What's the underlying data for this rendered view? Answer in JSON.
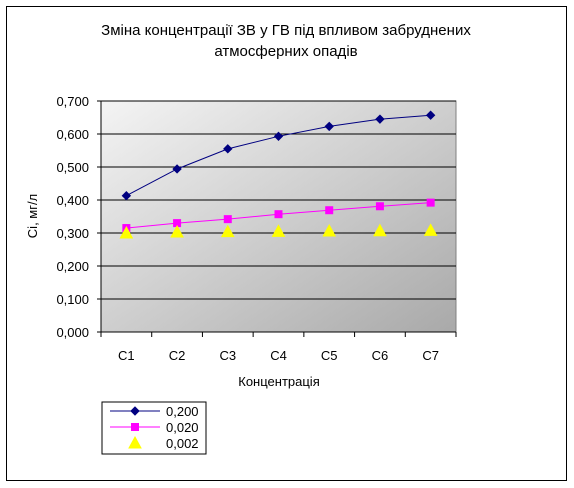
{
  "chart_data": {
    "type": "line",
    "title_lines": [
      "Зміна концентрації ЗВ у ГВ під впливом забруднених",
      "атмосферних опадів"
    ],
    "xlabel": "Концентрація",
    "ylabel": "Сі, мг/л",
    "categories": [
      "С1",
      "С2",
      "С3",
      "С4",
      "С5",
      "С6",
      "С7"
    ],
    "y_ticks": [
      "0,000",
      "0,100",
      "0,200",
      "0,300",
      "0,400",
      "0,500",
      "0,600",
      "0,700"
    ],
    "ylim": [
      0,
      0.7
    ],
    "grid": true,
    "legend_position": "bottom-left",
    "series": [
      {
        "name": "0,200",
        "color": "#000080",
        "marker": "diamond",
        "line": true,
        "values": [
          0.413,
          0.494,
          0.555,
          0.593,
          0.623,
          0.645,
          0.657
        ]
      },
      {
        "name": "0,020",
        "color": "#ff00ff",
        "marker": "square",
        "line": true,
        "values": [
          0.315,
          0.33,
          0.342,
          0.357,
          0.369,
          0.381,
          0.392
        ]
      },
      {
        "name": "0,002",
        "color": "#ffff00",
        "marker": "triangle",
        "line": false,
        "values": [
          0.3,
          0.303,
          0.304,
          0.305,
          0.306,
          0.307,
          0.308
        ]
      }
    ]
  }
}
